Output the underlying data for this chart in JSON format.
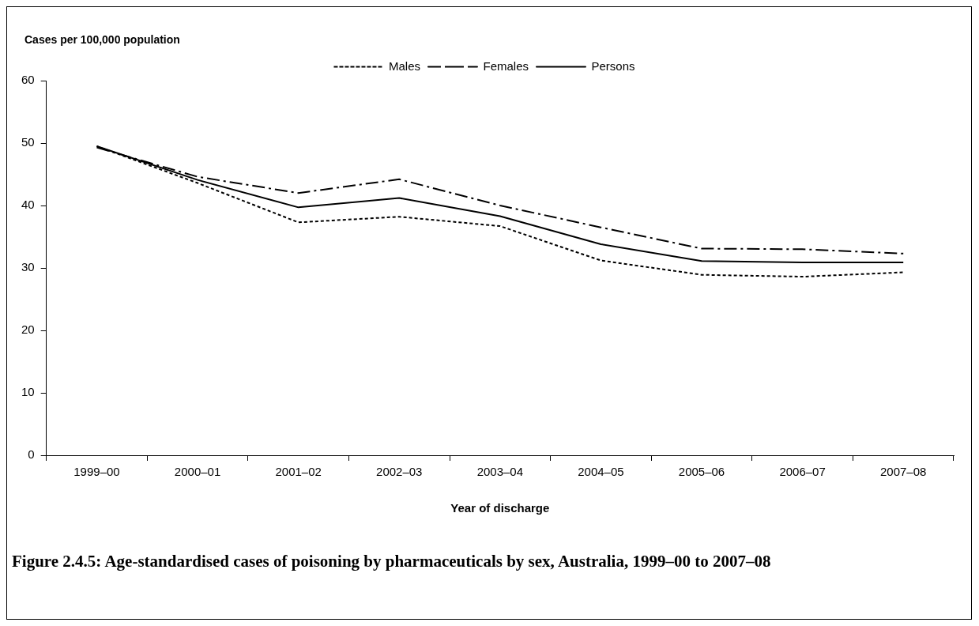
{
  "chart_data": {
    "type": "line",
    "title": "Figure 2.4.5: Age-standardised cases of poisoning by pharmaceuticals by sex, Australia, 1999–00 to 2007–08",
    "xlabel": "Year of discharge",
    "ylabel": "Cases per 100,000 population",
    "categories": [
      "1999–00",
      "2000–01",
      "2001–02",
      "2002–03",
      "2003–04",
      "2004–05",
      "2005–06",
      "2006–07",
      "2007–08"
    ],
    "series": [
      {
        "name": "Males",
        "color": "#000000",
        "line_style": "dotted",
        "values": [
          49.5,
          43.6,
          37.3,
          38.2,
          36.7,
          31.2,
          28.9,
          28.6,
          29.3
        ]
      },
      {
        "name": "Females",
        "color": "#000000",
        "line_style": "dashed",
        "values": [
          49.3,
          44.6,
          42.0,
          44.2,
          40.0,
          36.5,
          33.1,
          33.0,
          32.3
        ]
      },
      {
        "name": "Persons",
        "color": "#000000",
        "line_style": "solid",
        "values": [
          49.5,
          44.1,
          39.7,
          41.2,
          38.3,
          33.8,
          31.1,
          30.9,
          30.9
        ]
      }
    ],
    "ylim": [
      0,
      60
    ],
    "yticks": [
      0,
      10,
      20,
      30,
      40,
      50,
      60
    ],
    "grid": false,
    "legend": "top",
    "marker": "none"
  }
}
